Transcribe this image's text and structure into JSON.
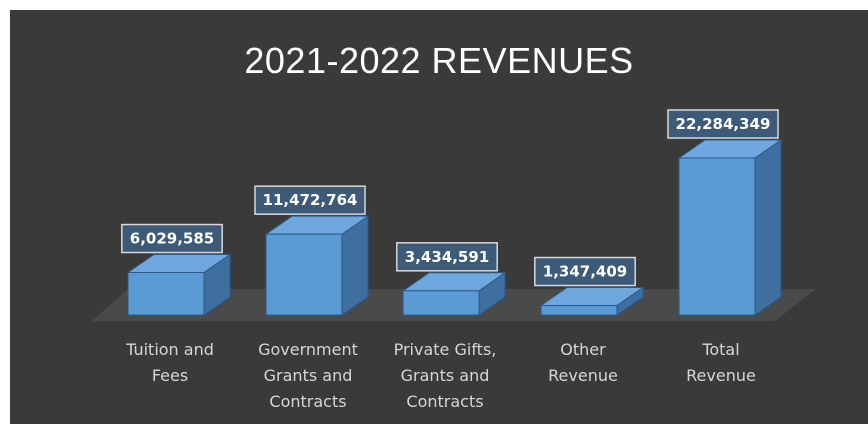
{
  "chart_data": {
    "type": "bar",
    "title": "2021-2022 REVENUES",
    "categories": [
      [
        "Tuition and",
        "Fees"
      ],
      [
        "Government",
        "Grants and",
        "Contracts"
      ],
      [
        "Private Gifts,",
        "Grants and",
        "Contracts"
      ],
      [
        "Other",
        "Revenue"
      ],
      [
        "Total",
        "Revenue"
      ]
    ],
    "values": [
      6029585,
      11472764,
      3434591,
      1347409,
      22284349
    ],
    "value_labels": [
      "6,029,585",
      "11,472,764",
      "3,434,591",
      "1,347,409",
      "22,284,349"
    ],
    "ylim": [
      0,
      22284349
    ],
    "grid": false,
    "legend": "none",
    "style": "3d-column",
    "colors": {
      "background": "#3a3a3a",
      "bar_front": "#5b9bd5",
      "bar_side": "#3e6f9e",
      "bar_top": "#6ea7dd",
      "bar_edge": "#2a5a8c",
      "floor": "#4a4a4a",
      "label_box": "#3d5a78",
      "label_border": "#d8d8d8"
    }
  }
}
